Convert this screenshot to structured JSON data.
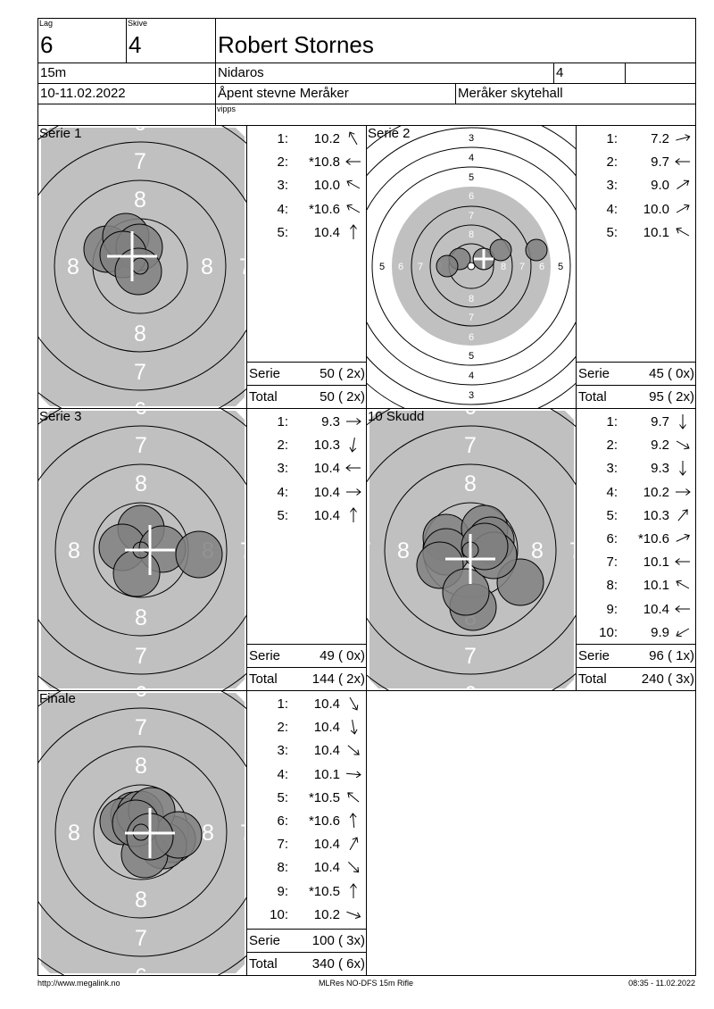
{
  "header": {
    "lag_label": "Lag",
    "lag": "6",
    "skive_label": "Skive",
    "skive": "4",
    "name": "Robert Stornes",
    "distance": "15m",
    "club": "Nidaros",
    "club_extra": "4",
    "club_extra2": "",
    "date": "10-11.02.2022",
    "event": "Åpent stevne Meråker",
    "venue": "Meråker skytehall",
    "note": "vipps"
  },
  "target_ring_labels": {
    "zoomed": [
      "8",
      "7",
      "6"
    ],
    "full": [
      "8",
      "7",
      "6",
      "5",
      "4",
      "3"
    ]
  },
  "series": [
    {
      "title": "Serie 1",
      "shots": [
        {
          "n": "1:",
          "value": "10.2",
          "direction_deg": 330
        },
        {
          "n": "2:",
          "value": "*10.8",
          "direction_deg": 270
        },
        {
          "n": "3:",
          "value": "10.0",
          "direction_deg": 300
        },
        {
          "n": "4:",
          "value": "*10.6",
          "direction_deg": 300
        },
        {
          "n": "5:",
          "value": "10.4",
          "direction_deg": 0
        }
      ],
      "serie_label": "Serie",
      "serie_score": "50 ( 2x)",
      "total_label": "Total",
      "total_score": "50 ( 2x)"
    },
    {
      "title": "Serie 2",
      "shots": [
        {
          "n": "1:",
          "value": "7.2",
          "direction_deg": 75
        },
        {
          "n": "2:",
          "value": "9.7",
          "direction_deg": 270
        },
        {
          "n": "3:",
          "value": "9.0",
          "direction_deg": 55
        },
        {
          "n": "4:",
          "value": "10.0",
          "direction_deg": 60
        },
        {
          "n": "5:",
          "value": "10.1",
          "direction_deg": 300
        }
      ],
      "serie_label": "Serie",
      "serie_score": "45 ( 0x)",
      "total_label": "Total",
      "total_score": "95 ( 2x)"
    },
    {
      "title": "Serie 3",
      "shots": [
        {
          "n": "1:",
          "value": "9.3",
          "direction_deg": 90
        },
        {
          "n": "2:",
          "value": "10.3",
          "direction_deg": 190
        },
        {
          "n": "3:",
          "value": "10.4",
          "direction_deg": 270
        },
        {
          "n": "4:",
          "value": "10.4",
          "direction_deg": 90
        },
        {
          "n": "5:",
          "value": "10.4",
          "direction_deg": 0
        }
      ],
      "serie_label": "Serie",
      "serie_score": "49 ( 0x)",
      "total_label": "Total",
      "total_score": "144 ( 2x)"
    },
    {
      "title": "10 Skudd",
      "shots": [
        {
          "n": "1:",
          "value": "9.7",
          "direction_deg": 180
        },
        {
          "n": "2:",
          "value": "9.2",
          "direction_deg": 120
        },
        {
          "n": "3:",
          "value": "9.3",
          "direction_deg": 180
        },
        {
          "n": "4:",
          "value": "10.2",
          "direction_deg": 90
        },
        {
          "n": "5:",
          "value": "10.3",
          "direction_deg": 40
        },
        {
          "n": "6:",
          "value": "*10.6",
          "direction_deg": 65
        },
        {
          "n": "7:",
          "value": "10.1",
          "direction_deg": 270
        },
        {
          "n": "8:",
          "value": "10.1",
          "direction_deg": 300
        },
        {
          "n": "9:",
          "value": "10.4",
          "direction_deg": 270
        },
        {
          "n": "10:",
          "value": "9.9",
          "direction_deg": 240
        }
      ],
      "serie_label": "Serie",
      "serie_score": "96 ( 1x)",
      "total_label": "Total",
      "total_score": "240 ( 3x)"
    },
    {
      "title": "Finale",
      "shots": [
        {
          "n": "1:",
          "value": "10.4",
          "direction_deg": 150
        },
        {
          "n": "2:",
          "value": "10.4",
          "direction_deg": 170
        },
        {
          "n": "3:",
          "value": "10.4",
          "direction_deg": 130
        },
        {
          "n": "4:",
          "value": "10.1",
          "direction_deg": 95
        },
        {
          "n": "5:",
          "value": "*10.5",
          "direction_deg": 310
        },
        {
          "n": "6:",
          "value": "*10.6",
          "direction_deg": 355
        },
        {
          "n": "7:",
          "value": "10.4",
          "direction_deg": 30
        },
        {
          "n": "8:",
          "value": "10.4",
          "direction_deg": 135
        },
        {
          "n": "9:",
          "value": "*10.5",
          "direction_deg": 0
        },
        {
          "n": "10:",
          "value": "10.2",
          "direction_deg": 110
        }
      ],
      "serie_label": "Serie",
      "serie_score": "100 ( 3x)",
      "total_label": "Total",
      "total_score": "340 ( 6x)"
    }
  ],
  "footer": {
    "url": "http://www.megalink.no",
    "program": "MLRes NO-DFS 15m Rifle",
    "timestamp": "08:35 - 11.02.2022"
  },
  "colors": {
    "target_gray": "#c0c0c0",
    "shot_fill": "#808080",
    "ring": "#000000",
    "label_light": "#ffffff"
  }
}
